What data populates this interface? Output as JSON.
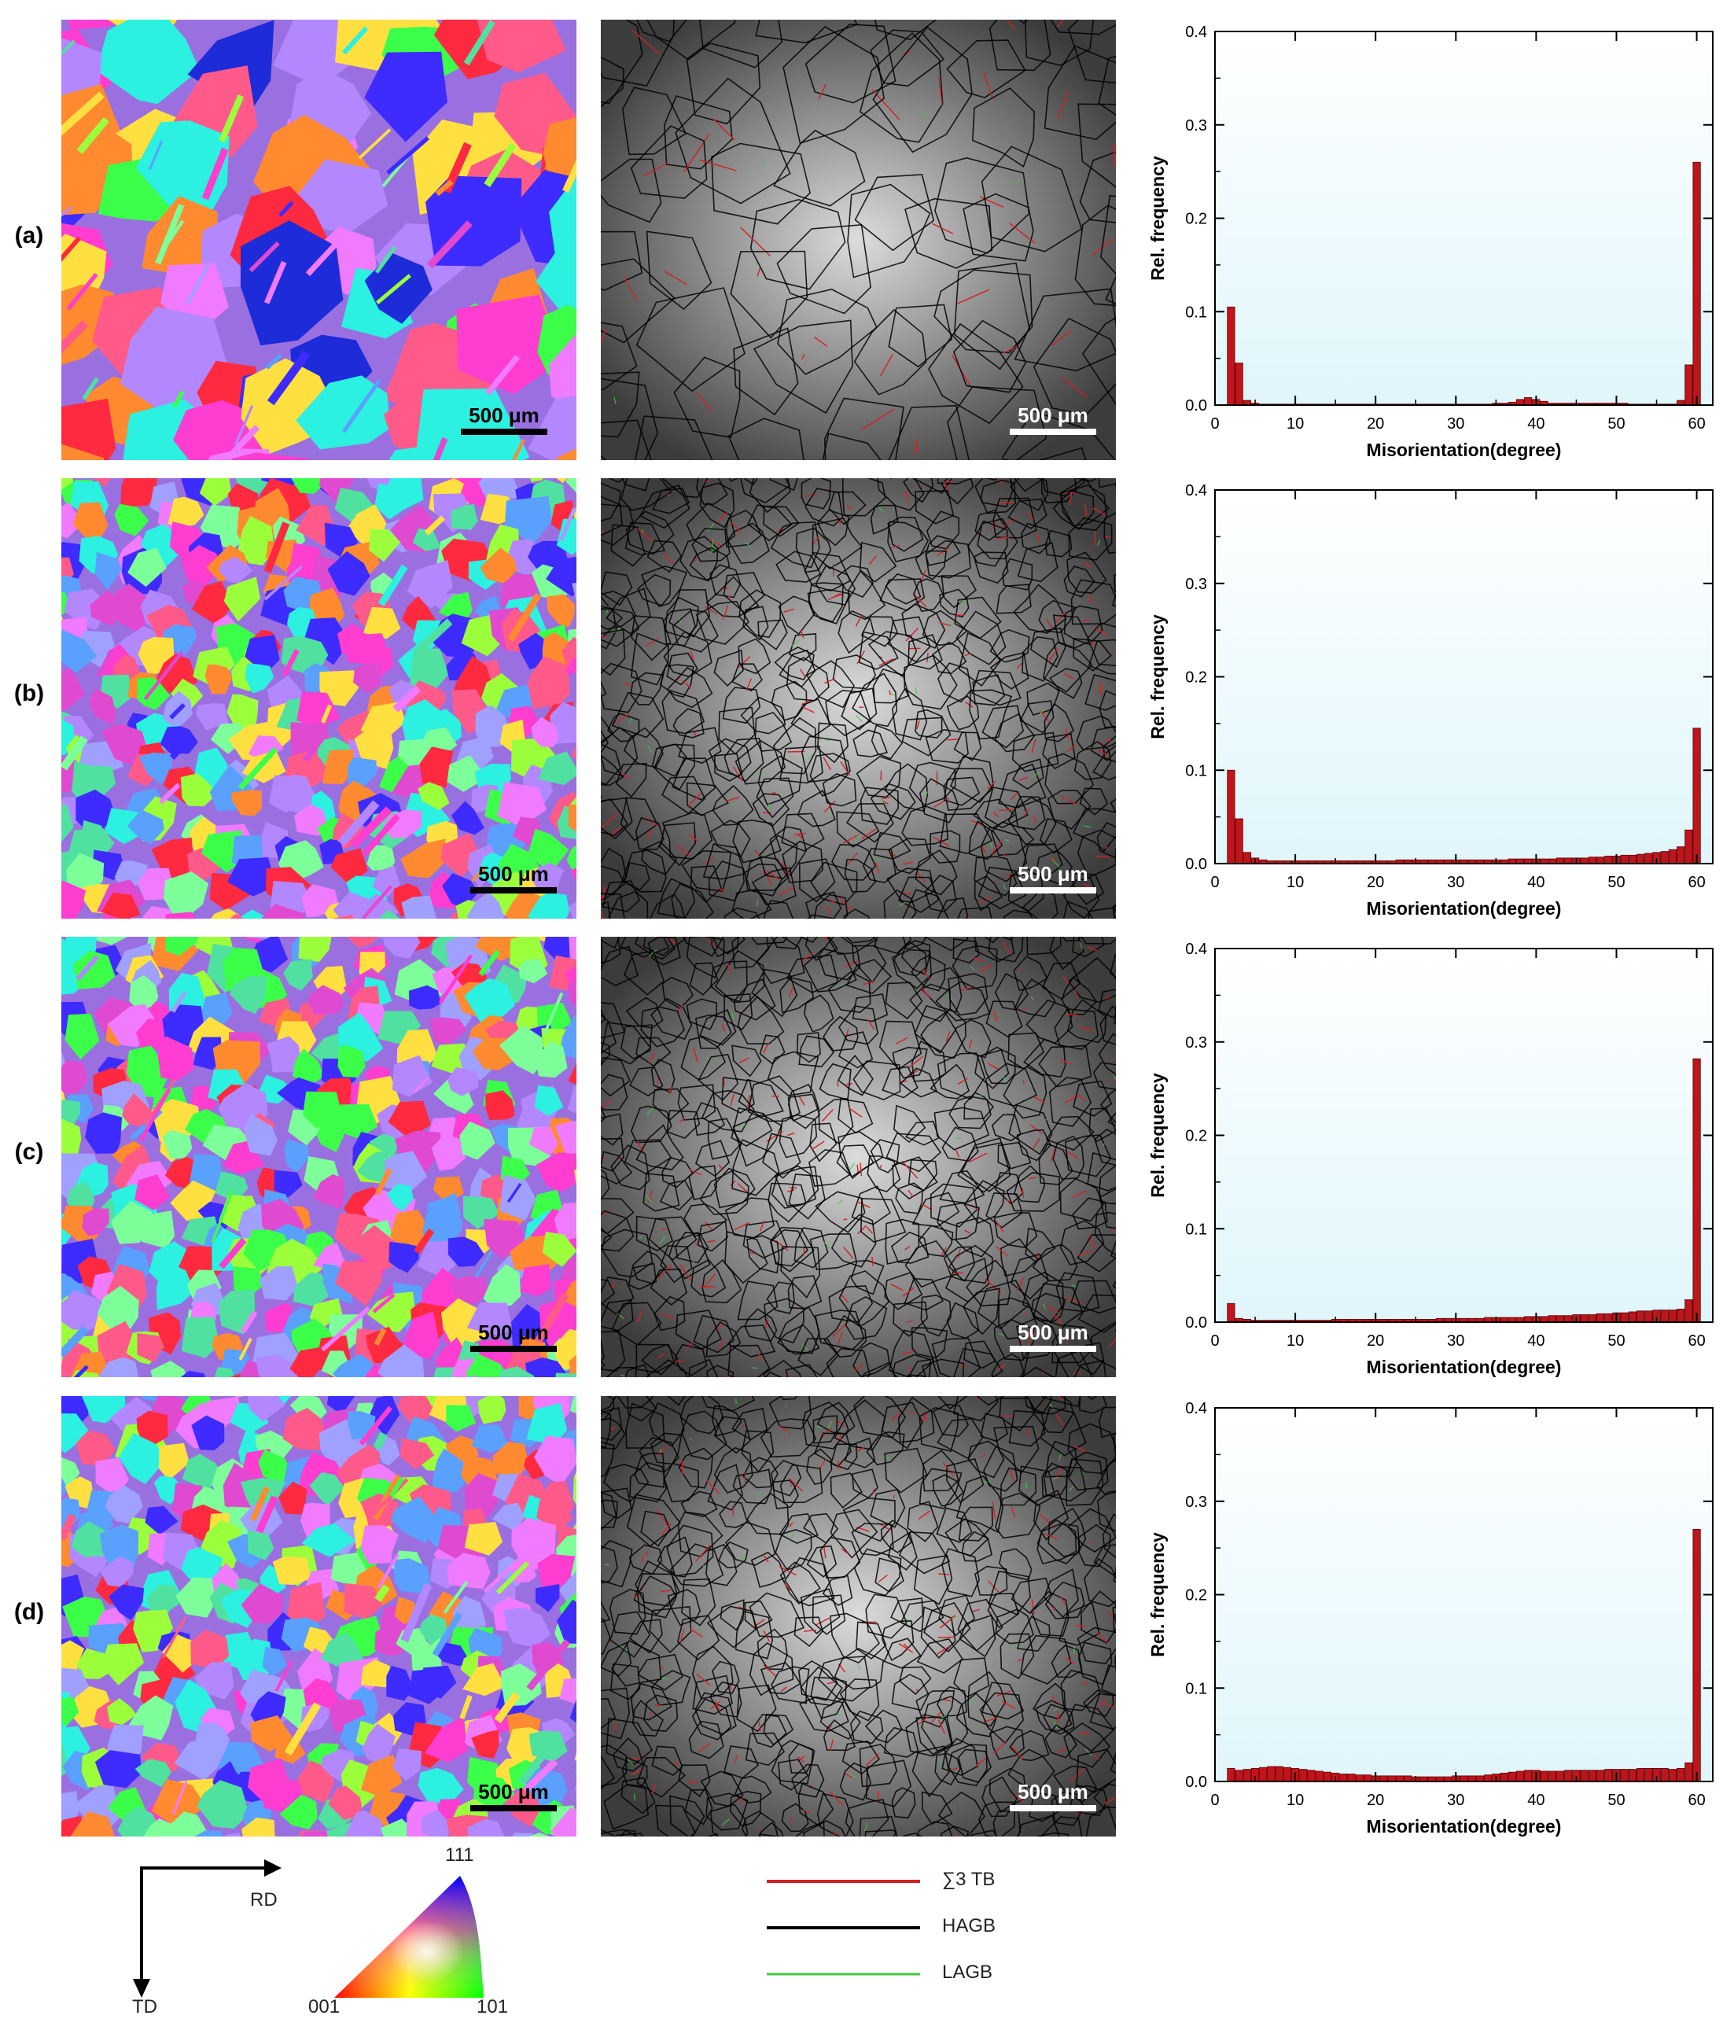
{
  "rows": [
    {
      "label": "(a)",
      "ipf_scale": "500 μm",
      "gb_scale": "500 μm"
    },
    {
      "label": "(b)",
      "ipf_scale": "500 μm",
      "gb_scale": "500 μm"
    },
    {
      "label": "(c)",
      "ipf_scale": "500 μm",
      "gb_scale": "500 μm"
    },
    {
      "label": "(d)",
      "ipf_scale": "500 μm",
      "gb_scale": "500 μm"
    }
  ],
  "colors": {
    "chart_bg": "#dff6fb",
    "bar": "#c0141b",
    "twin_boundary": "#d42020",
    "hagb": "#000000",
    "lagb": "#3ec93e"
  },
  "axes_legend": {
    "rd": "RD",
    "td": "TD"
  },
  "ipf_key": {
    "top": "111",
    "left": "001",
    "right": "101"
  },
  "boundary_legend": [
    {
      "label": "∑3 TB",
      "color": "#d42020"
    },
    {
      "label": "HAGB",
      "color": "#000000"
    },
    {
      "label": "LAGB",
      "color": "#3ec93e"
    }
  ],
  "chart_data": [
    {
      "type": "bar",
      "panel": "(a)",
      "xlabel": "Misorientation(degree)",
      "ylabel": "Rel. frequency",
      "xlim": [
        0,
        62
      ],
      "ylim": [
        0,
        0.4
      ],
      "xticks": [
        0,
        10,
        20,
        30,
        40,
        50,
        60
      ],
      "yticks": [
        0.0,
        0.1,
        0.2,
        0.3,
        0.4
      ],
      "bin_width": 1,
      "x": [
        2,
        3,
        4,
        5,
        6,
        7,
        8,
        9,
        10,
        11,
        12,
        13,
        14,
        15,
        16,
        17,
        18,
        19,
        20,
        21,
        22,
        23,
        24,
        25,
        26,
        27,
        28,
        29,
        30,
        31,
        32,
        33,
        34,
        35,
        36,
        37,
        38,
        39,
        40,
        41,
        42,
        43,
        44,
        45,
        46,
        47,
        48,
        49,
        50,
        51,
        52,
        53,
        54,
        55,
        56,
        57,
        58,
        59,
        60
      ],
      "values": [
        0.105,
        0.045,
        0.005,
        0.002,
        0.001,
        0.001,
        0.001,
        0.001,
        0.001,
        0.001,
        0.001,
        0.001,
        0.001,
        0.001,
        0.001,
        0.001,
        0.001,
        0.001,
        0.001,
        0.001,
        0.001,
        0.001,
        0.001,
        0.001,
        0.001,
        0.001,
        0.001,
        0.001,
        0.001,
        0.001,
        0.001,
        0.001,
        0.001,
        0.002,
        0.002,
        0.003,
        0.006,
        0.008,
        0.006,
        0.004,
        0.002,
        0.002,
        0.002,
        0.002,
        0.002,
        0.002,
        0.002,
        0.002,
        0.002,
        0.002,
        0.001,
        0.001,
        0.001,
        0.001,
        0.001,
        0.001,
        0.005,
        0.043,
        0.26
      ]
    },
    {
      "type": "bar",
      "panel": "(b)",
      "xlabel": "Misorientation(degree)",
      "ylabel": "Rel. frequency",
      "xlim": [
        0,
        62
      ],
      "ylim": [
        0,
        0.4
      ],
      "xticks": [
        0,
        10,
        20,
        30,
        40,
        50,
        60
      ],
      "yticks": [
        0.0,
        0.1,
        0.2,
        0.3,
        0.4
      ],
      "bin_width": 1,
      "x": [
        2,
        3,
        4,
        5,
        6,
        7,
        8,
        9,
        10,
        11,
        12,
        13,
        14,
        15,
        16,
        17,
        18,
        19,
        20,
        21,
        22,
        23,
        24,
        25,
        26,
        27,
        28,
        29,
        30,
        31,
        32,
        33,
        34,
        35,
        36,
        37,
        38,
        39,
        40,
        41,
        42,
        43,
        44,
        45,
        46,
        47,
        48,
        49,
        50,
        51,
        52,
        53,
        54,
        55,
        56,
        57,
        58,
        59,
        60
      ],
      "values": [
        0.1,
        0.048,
        0.012,
        0.006,
        0.004,
        0.003,
        0.003,
        0.003,
        0.003,
        0.003,
        0.003,
        0.003,
        0.003,
        0.003,
        0.003,
        0.003,
        0.003,
        0.003,
        0.003,
        0.003,
        0.003,
        0.004,
        0.004,
        0.004,
        0.004,
        0.004,
        0.004,
        0.004,
        0.004,
        0.004,
        0.004,
        0.004,
        0.004,
        0.004,
        0.004,
        0.005,
        0.005,
        0.005,
        0.005,
        0.005,
        0.005,
        0.006,
        0.006,
        0.006,
        0.006,
        0.007,
        0.007,
        0.008,
        0.008,
        0.009,
        0.009,
        0.01,
        0.011,
        0.012,
        0.013,
        0.015,
        0.018,
        0.036,
        0.145
      ]
    },
    {
      "type": "bar",
      "panel": "(c)",
      "xlabel": "Misorientation(degree)",
      "ylabel": "Rel. frequency",
      "xlim": [
        0,
        62
      ],
      "ylim": [
        0,
        0.4
      ],
      "xticks": [
        0,
        10,
        20,
        30,
        40,
        50,
        60
      ],
      "yticks": [
        0.0,
        0.1,
        0.2,
        0.3,
        0.4
      ],
      "bin_width": 1,
      "x": [
        2,
        3,
        4,
        5,
        6,
        7,
        8,
        9,
        10,
        11,
        12,
        13,
        14,
        15,
        16,
        17,
        18,
        19,
        20,
        21,
        22,
        23,
        24,
        25,
        26,
        27,
        28,
        29,
        30,
        31,
        32,
        33,
        34,
        35,
        36,
        37,
        38,
        39,
        40,
        41,
        42,
        43,
        44,
        45,
        46,
        47,
        48,
        49,
        50,
        51,
        52,
        53,
        54,
        55,
        56,
        57,
        58,
        59,
        60
      ],
      "values": [
        0.02,
        0.004,
        0.003,
        0.002,
        0.002,
        0.002,
        0.002,
        0.002,
        0.002,
        0.002,
        0.002,
        0.002,
        0.002,
        0.003,
        0.003,
        0.003,
        0.003,
        0.003,
        0.003,
        0.003,
        0.003,
        0.003,
        0.003,
        0.003,
        0.003,
        0.003,
        0.004,
        0.004,
        0.004,
        0.004,
        0.004,
        0.004,
        0.005,
        0.005,
        0.005,
        0.005,
        0.005,
        0.006,
        0.006,
        0.006,
        0.007,
        0.007,
        0.007,
        0.008,
        0.008,
        0.008,
        0.009,
        0.009,
        0.01,
        0.01,
        0.011,
        0.012,
        0.012,
        0.013,
        0.013,
        0.013,
        0.014,
        0.024,
        0.282
      ]
    },
    {
      "type": "bar",
      "panel": "(d)",
      "xlabel": "Misorientation(degree)",
      "ylabel": "Rel. frequency",
      "xlim": [
        0,
        62
      ],
      "ylim": [
        0,
        0.4
      ],
      "xticks": [
        0,
        10,
        20,
        30,
        40,
        50,
        60
      ],
      "yticks": [
        0.0,
        0.1,
        0.2,
        0.3,
        0.4
      ],
      "bin_width": 1,
      "x": [
        2,
        3,
        4,
        5,
        6,
        7,
        8,
        9,
        10,
        11,
        12,
        13,
        14,
        15,
        16,
        17,
        18,
        19,
        20,
        21,
        22,
        23,
        24,
        25,
        26,
        27,
        28,
        29,
        30,
        31,
        32,
        33,
        34,
        35,
        36,
        37,
        38,
        39,
        40,
        41,
        42,
        43,
        44,
        45,
        46,
        47,
        48,
        49,
        50,
        51,
        52,
        53,
        54,
        55,
        56,
        57,
        58,
        59,
        60
      ],
      "values": [
        0.014,
        0.012,
        0.013,
        0.014,
        0.015,
        0.016,
        0.016,
        0.015,
        0.014,
        0.013,
        0.012,
        0.011,
        0.01,
        0.009,
        0.008,
        0.008,
        0.007,
        0.007,
        0.006,
        0.006,
        0.006,
        0.006,
        0.006,
        0.005,
        0.005,
        0.005,
        0.005,
        0.005,
        0.006,
        0.006,
        0.006,
        0.006,
        0.007,
        0.008,
        0.009,
        0.01,
        0.011,
        0.012,
        0.012,
        0.011,
        0.011,
        0.011,
        0.012,
        0.012,
        0.012,
        0.012,
        0.012,
        0.013,
        0.013,
        0.013,
        0.013,
        0.014,
        0.014,
        0.014,
        0.014,
        0.013,
        0.014,
        0.02,
        0.27
      ]
    }
  ]
}
